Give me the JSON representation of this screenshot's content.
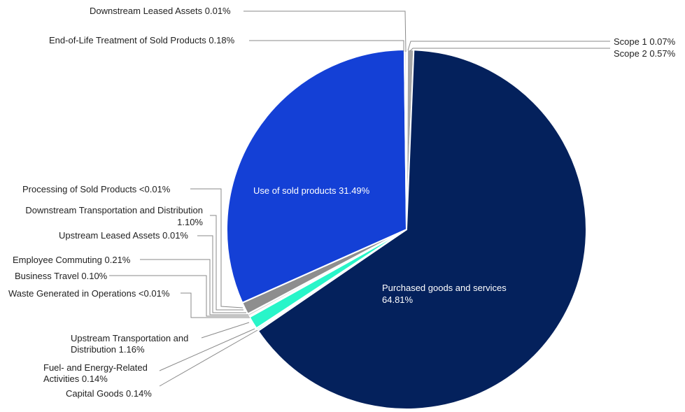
{
  "chart_data": {
    "type": "pie",
    "start_angle_deg": 0,
    "direction": "clockwise",
    "slices": [
      {
        "name": "Scope 1",
        "value": 0.07,
        "label": "Scope 1  0.07%",
        "color": "#b3b3b3"
      },
      {
        "name": "Scope 2",
        "value": 0.57,
        "label": "Scope 2 0.57%",
        "color": "#a6a6a6"
      },
      {
        "name": "Purchased goods and services",
        "value": 64.81,
        "label_lines": [
          "Purchased goods and services",
          "64.81%"
        ],
        "color": "#04215c"
      },
      {
        "name": "Capital Goods",
        "value": 0.14,
        "label": "Capital Goods 0.14%",
        "color": "#1fc8a0"
      },
      {
        "name": "Fuel- and Energy-Related Activities",
        "value": 0.14,
        "label_lines": [
          "Fuel- and Energy-Related",
          "Activities 0.14%"
        ],
        "color": "#27d8b0"
      },
      {
        "name": "Upstream Transportation and Distribution",
        "value": 1.16,
        "label_lines": [
          "Upstream Transportation and",
          "Distribution 1.16%"
        ],
        "color": "#28f5c9"
      },
      {
        "name": "Waste Generated in Operations",
        "value": 0.004,
        "label": "Waste Generated in Operations <0.01%",
        "color": "#cccccc"
      },
      {
        "name": "Business Travel",
        "value": 0.1,
        "label": "Business Travel 0.10%",
        "color": "#bfbfbf"
      },
      {
        "name": "Employee Commuting",
        "value": 0.21,
        "label": "Employee Commuting 0.21%",
        "color": "#d4d4d4"
      },
      {
        "name": "Upstream Leased Assets",
        "value": 0.01,
        "label": "Upstream Leased Assets 0.01%",
        "color": "#cccccc"
      },
      {
        "name": "Downstream Transportation and Distribution",
        "value": 1.1,
        "label_lines": [
          "Downstream Transportation and Distribution",
          "1.10%"
        ],
        "color": "#8e8e8e"
      },
      {
        "name": "Processing of Sold Products",
        "value": 0.004,
        "label": "Processing of Sold Products <0.01%",
        "color": "#cccccc"
      },
      {
        "name": "Use of sold products",
        "value": 31.49,
        "label": "Use of sold products 31.49%",
        "color": "#1440d6"
      },
      {
        "name": "End-of-Life Treatment of Sold Products",
        "value": 0.18,
        "label": "End-of-Life Treatment of Sold Products 0.18%",
        "color": "#d9d9d9"
      },
      {
        "name": "Downstream Leased Assets",
        "value": 0.01,
        "label": "Downstream Leased Assets 0.01%",
        "color": "#bdbdbd"
      }
    ]
  }
}
